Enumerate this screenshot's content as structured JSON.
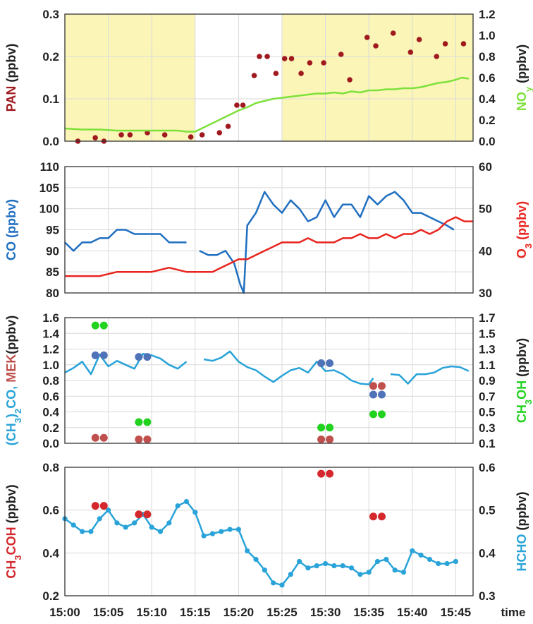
{
  "colors": {
    "pan": "#a0191e",
    "noy": "#7ee03a",
    "co": "#1f6fc0",
    "o3": "#e8251f",
    "acetone_mek_blue": "#4f73b8",
    "mek_red": "#c0504d",
    "methanol": "#21d21e",
    "ch3coh": "#d4282d",
    "hcho": "#29a3d8",
    "shade": "#fbf6b8",
    "grid": "#d9d9d9",
    "axis_text": "#222222",
    "label_black": "#222222"
  },
  "x_axis": {
    "label": "time",
    "ticks": [
      "15:00",
      "15:05",
      "15:10",
      "15:15",
      "15:20",
      "15:25",
      "15:30",
      "15:35",
      "15:40",
      "15:45"
    ],
    "range_min": [
      0,
      47
    ]
  },
  "panels": [
    {
      "left_label": [
        {
          "t": "PAN",
          "c": "pan"
        },
        {
          "t": " (ppbv)",
          "c": "label_black"
        }
      ],
      "right_label": [
        {
          "t": "NO",
          "c": "noy"
        },
        {
          "t": "y",
          "c": "noy",
          "sub": true
        },
        {
          "t": " (ppbv)",
          "c": "label_black"
        }
      ],
      "left_ticks": [
        "0.0",
        "0.1",
        "0.2",
        "0.3"
      ],
      "right_ticks": [
        "0.0",
        "0.2",
        "0.4",
        "0.6",
        "0.8",
        "1.0",
        "1.2"
      ]
    },
    {
      "left_label": [
        {
          "t": "CO",
          "c": "co"
        },
        {
          "t": " (ppbv)",
          "c": "co"
        }
      ],
      "right_label": [
        {
          "t": "O",
          "c": "o3"
        },
        {
          "t": "3",
          "c": "o3",
          "sub": true
        },
        {
          "t": " (ppbv)",
          "c": "o3"
        }
      ],
      "left_ticks": [
        "80",
        "85",
        "90",
        "95",
        "100",
        "105",
        "110"
      ],
      "right_ticks": [
        "30",
        "40",
        "50",
        "60"
      ]
    },
    {
      "left_label": [
        {
          "t": "(CH",
          "c": "hcho"
        },
        {
          "t": "3",
          "c": "hcho",
          "sub": true
        },
        {
          "t": ")",
          "c": "hcho"
        },
        {
          "t": "2",
          "c": "hcho",
          "sub": true
        },
        {
          "t": "CO, ",
          "c": "hcho"
        },
        {
          "t": "MEK",
          "c": "mek_red"
        },
        {
          "t": "(ppbv)",
          "c": "label_black"
        }
      ],
      "right_label": [
        {
          "t": "CH",
          "c": "methanol"
        },
        {
          "t": "3",
          "c": "methanol",
          "sub": true
        },
        {
          "t": "OH",
          "c": "methanol"
        },
        {
          "t": " (ppbv)",
          "c": "label_black"
        }
      ],
      "left_ticks": [
        "0.0",
        "0.2",
        "0.4",
        "0.6",
        "0.8",
        "1.0",
        "1.2",
        "1.4",
        "1.6"
      ],
      "right_ticks": [
        "0.1",
        "0.3",
        "0.5",
        "0.7",
        "0.9",
        "1.1",
        "1.3",
        "1.5",
        "1.7"
      ]
    },
    {
      "left_label": [
        {
          "t": "CH",
          "c": "ch3coh"
        },
        {
          "t": "3",
          "c": "ch3coh",
          "sub": true
        },
        {
          "t": "COH",
          "c": "ch3coh"
        },
        {
          "t": " (ppbv)",
          "c": "label_black"
        }
      ],
      "right_label": [
        {
          "t": "HCHO",
          "c": "hcho"
        },
        {
          "t": " (ppbv)",
          "c": "label_black"
        }
      ],
      "left_ticks": [
        "0.2",
        "0.4",
        "0.6",
        "0.8"
      ],
      "right_ticks": [
        "0.3",
        "0.4",
        "0.5",
        "0.6"
      ]
    }
  ],
  "chart_data": [
    {
      "type": "scatter",
      "shaded_x_ranges": [
        [
          0,
          15
        ],
        [
          25,
          47
        ]
      ],
      "xlim": [
        0,
        47
      ],
      "ylim_left": [
        0,
        0.3
      ],
      "ylim_right": [
        0,
        1.2
      ],
      "series": [
        {
          "axis": "left",
          "style": "dots",
          "color_key": "pan",
          "x": [
            1.5,
            3.5,
            4.5,
            6.5,
            7.5,
            9.5,
            11.5,
            14.5,
            15.8,
            17.8,
            18.8,
            19.8,
            20.5,
            21.8,
            22.4,
            23.3,
            24.3,
            25.3,
            26.1,
            27.2,
            28.2,
            29.8,
            31.8,
            32.8,
            34.8,
            35.8,
            37.8,
            39.8,
            40.8,
            42.8,
            43.8,
            45.9
          ],
          "y": [
            0.0,
            0.008,
            0.0,
            0.015,
            0.015,
            0.02,
            0.015,
            0.01,
            0.015,
            0.02,
            0.035,
            0.085,
            0.085,
            0.155,
            0.2,
            0.2,
            0.16,
            0.195,
            0.195,
            0.16,
            0.185,
            0.185,
            0.205,
            0.145,
            0.245,
            0.225,
            0.255,
            0.21,
            0.24,
            0.2,
            0.23,
            0.23
          ]
        },
        {
          "axis": "right",
          "style": "line",
          "color_key": "noy",
          "x": [
            0,
            2,
            4,
            6,
            8,
            10,
            12,
            13,
            14,
            15,
            20,
            21,
            22,
            23,
            24,
            25,
            26,
            27,
            28,
            29,
            30,
            31,
            32,
            33,
            34,
            35,
            36,
            37,
            38,
            39,
            40,
            41,
            42,
            43,
            44,
            45,
            45.7,
            46.5
          ],
          "y": [
            0.12,
            0.11,
            0.11,
            0.1,
            0.1,
            0.1,
            0.1,
            0.1,
            0.09,
            0.09,
            0.29,
            0.32,
            0.36,
            0.38,
            0.4,
            0.41,
            0.42,
            0.43,
            0.44,
            0.45,
            0.45,
            0.46,
            0.45,
            0.47,
            0.46,
            0.48,
            0.48,
            0.49,
            0.49,
            0.5,
            0.5,
            0.51,
            0.53,
            0.55,
            0.56,
            0.58,
            0.6,
            0.59
          ]
        }
      ]
    },
    {
      "type": "line",
      "xlim": [
        0,
        47
      ],
      "ylim_left": [
        80,
        110
      ],
      "ylim_right": [
        30,
        60
      ],
      "series": [
        {
          "axis": "left",
          "color_key": "co",
          "segments": [
            {
              "x": [
                0,
                1,
                2,
                3,
                4,
                5,
                6,
                7,
                8,
                9,
                10,
                11,
                12,
                13,
                14
              ],
              "y": [
                92,
                90,
                92,
                92,
                93,
                93,
                95,
                95,
                94,
                94,
                94,
                94,
                92,
                92,
                92
              ]
            },
            {
              "x": [
                15.5,
                16.5,
                17.5,
                18.5,
                19.5,
                20.2,
                20.6,
                21,
                22,
                23,
                24,
                25,
                26,
                27,
                28,
                29,
                30,
                31,
                32,
                33,
                34,
                35,
                36,
                37,
                38,
                39,
                40,
                41,
                42,
                43,
                44,
                44.8
              ],
              "y": [
                90,
                89,
                89,
                90,
                87,
                82,
                80,
                96,
                99,
                104,
                101,
                99,
                102,
                100,
                97,
                98,
                102,
                98,
                101,
                101,
                98,
                103,
                101,
                103,
                104,
                102,
                99,
                99,
                98,
                97,
                96,
                95
              ]
            }
          ]
        },
        {
          "axis": "right",
          "color_key": "o3",
          "segments": [
            {
              "x": [
                0,
                2,
                4,
                6,
                8,
                10,
                12,
                14,
                16,
                17,
                18,
                19,
                20,
                21,
                22,
                23,
                24,
                25,
                26,
                27,
                28,
                29,
                30,
                31,
                32,
                33,
                34,
                35,
                36,
                37,
                38,
                39,
                40,
                41,
                42,
                43,
                44,
                45,
                46,
                47
              ],
              "y": [
                34,
                34,
                34,
                35,
                35,
                35,
                36,
                35,
                35,
                35,
                36,
                37,
                38,
                38,
                39,
                40,
                41,
                42,
                42,
                42,
                43,
                42,
                42,
                42,
                43,
                43,
                44,
                43,
                43,
                44,
                43,
                44,
                44,
                45,
                44,
                45,
                47,
                48,
                47,
                47
              ]
            }
          ]
        }
      ]
    },
    {
      "type": "scatter",
      "xlim": [
        0,
        47
      ],
      "ylim_left": [
        0,
        1.6
      ],
      "ylim_right": [
        0.1,
        1.7
      ],
      "series": [
        {
          "axis": "left",
          "style": "line",
          "color_key": "hcho",
          "segments": [
            {
              "x": [
                0,
                1,
                2,
                3,
                4,
                5,
                6,
                7,
                8,
                9,
                10,
                11,
                12,
                13,
                14
              ],
              "y": [
                0.9,
                0.96,
                1.04,
                0.88,
                1.13,
                0.98,
                1.05,
                1.0,
                0.95,
                1.14,
                1.12,
                1.08,
                1.0,
                0.95,
                1.04
              ]
            },
            {
              "x": [
                16,
                17,
                18,
                19,
                20,
                21,
                22,
                23,
                24,
                25,
                26,
                27,
                28,
                29,
                30,
                31,
                32,
                33,
                34,
                35,
                35.5
              ],
              "y": [
                1.07,
                1.05,
                1.09,
                1.17,
                1.04,
                0.97,
                0.93,
                0.85,
                0.78,
                0.86,
                0.93,
                0.96,
                0.9,
                1.04,
                0.92,
                0.93,
                0.88,
                0.8,
                0.76,
                0.75,
                0.83
              ]
            },
            {
              "x": [
                37.5,
                38.5,
                39.5,
                40.5,
                41.5,
                42.5,
                43.5,
                44.5,
                45.5,
                46.5
              ],
              "y": [
                0.88,
                0.87,
                0.76,
                0.88,
                0.88,
                0.9,
                0.96,
                0.98,
                0.97,
                0.92
              ]
            }
          ]
        },
        {
          "axis": "right",
          "style": "dots",
          "color_key": "methanol",
          "x": [
            4,
            9,
            30,
            36
          ],
          "y": [
            1.6,
            0.37,
            0.3,
            0.47
          ]
        },
        {
          "axis": "left",
          "style": "dots",
          "color_key": "acetone_mek_blue",
          "x": [
            4,
            9,
            30,
            36
          ],
          "y": [
            1.12,
            1.1,
            1.02,
            0.62
          ]
        },
        {
          "axis": "left",
          "style": "dots",
          "color_key": "mek_red",
          "x": [
            4,
            9,
            30,
            36
          ],
          "y": [
            0.07,
            0.05,
            0.05,
            0.73
          ]
        }
      ]
    },
    {
      "type": "scatter",
      "xlim": [
        0,
        47
      ],
      "ylim_left": [
        0.2,
        0.8
      ],
      "ylim_right": [
        0.3,
        0.6
      ],
      "series": [
        {
          "axis": "right",
          "style": "line-markers",
          "color_key": "hcho",
          "x": [
            0,
            1,
            2,
            3,
            4,
            5,
            6,
            7,
            8,
            9,
            10,
            11,
            12,
            13,
            14,
            15,
            16,
            17,
            18,
            19,
            20,
            21,
            22,
            23,
            24,
            25,
            26,
            27,
            28,
            29,
            30,
            31,
            32,
            33,
            34,
            35,
            36,
            37,
            38,
            39,
            40,
            41,
            42,
            43,
            44,
            45
          ],
          "y": [
            0.48,
            0.465,
            0.45,
            0.45,
            0.48,
            0.5,
            0.47,
            0.46,
            0.47,
            0.49,
            0.46,
            0.45,
            0.47,
            0.51,
            0.52,
            0.495,
            0.44,
            0.445,
            0.45,
            0.455,
            0.455,
            0.405,
            0.385,
            0.36,
            0.33,
            0.325,
            0.35,
            0.38,
            0.365,
            0.37,
            0.375,
            0.37,
            0.37,
            0.365,
            0.35,
            0.355,
            0.38,
            0.385,
            0.36,
            0.355,
            0.405,
            0.395,
            0.385,
            0.375,
            0.375,
            0.38
          ]
        },
        {
          "axis": "left",
          "style": "dots",
          "color_key": "ch3coh",
          "x": [
            4,
            9,
            30,
            36
          ],
          "y": [
            0.62,
            0.58,
            0.77,
            0.57
          ]
        }
      ]
    }
  ]
}
